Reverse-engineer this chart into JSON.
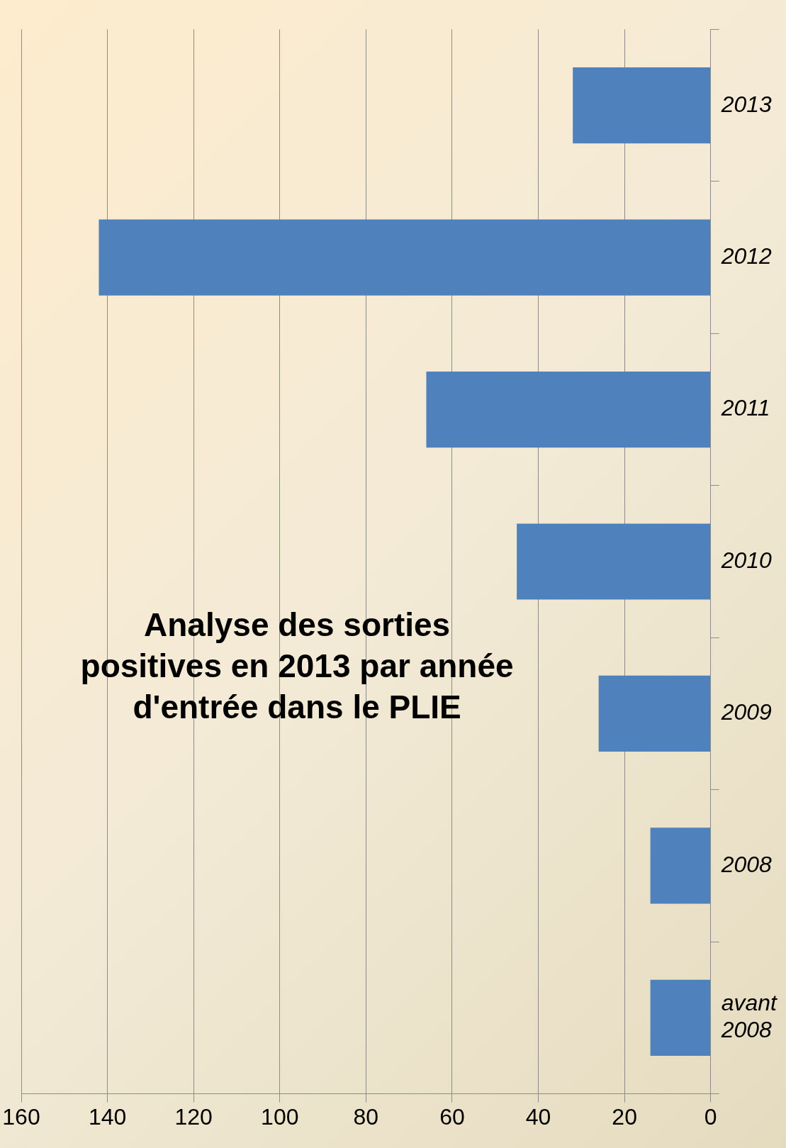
{
  "chart_data": {
    "type": "bar",
    "orientation": "horizontal",
    "title": "Analyse des sorties\npositives en 2013 par année\nd'entrée dans le PLIE",
    "categories": [
      "2013",
      "2012",
      "2011",
      "2010",
      "2009",
      "2008",
      "avant 2008"
    ],
    "values": [
      32,
      142,
      66,
      45,
      26,
      14,
      14
    ],
    "color": "#4f81bd",
    "xlim": [
      160,
      0
    ],
    "xticks": [
      0,
      20,
      40,
      60,
      80,
      100,
      120,
      140,
      160
    ],
    "grid": "x",
    "legend": false
  }
}
